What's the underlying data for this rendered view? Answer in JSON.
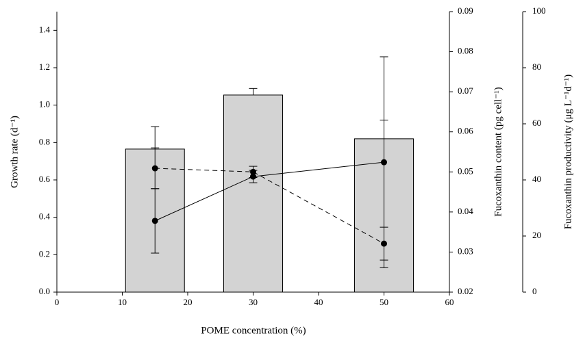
{
  "chart_data": {
    "type": "bar_line",
    "xlabel": "POME concentration (%)",
    "ylabel": "Growth rate (d⁻¹)",
    "y2label": "Fucoxanthin content (pg cell⁻¹)",
    "y3label": "Fucoxanthin productivity (μg L⁻¹d⁻¹)",
    "xlim": [
      0,
      60
    ],
    "xticks": [
      0,
      10,
      20,
      30,
      40,
      50,
      60
    ],
    "ylim": [
      0,
      1.5
    ],
    "yticks": [
      {
        "value": 0,
        "label": "0.0"
      },
      {
        "value": 0.2,
        "label": "0.2"
      },
      {
        "value": 0.4,
        "label": "0.4"
      },
      {
        "value": 0.6,
        "label": "0.6"
      },
      {
        "value": 0.8,
        "label": "0.8"
      },
      {
        "value": 1,
        "label": "1.0"
      },
      {
        "value": 1.2,
        "label": "1.2"
      },
      {
        "value": 1.4,
        "label": "1.4"
      }
    ],
    "y2lim": [
      0.02,
      0.09
    ],
    "y2ticks": [
      0.02,
      0.03,
      0.04,
      0.05,
      0.06,
      0.07,
      0.08,
      0.09
    ],
    "y3lim": [
      0,
      100
    ],
    "y3ticks": [
      0,
      20,
      40,
      60,
      80,
      100
    ],
    "x": [
      15,
      30,
      50
    ],
    "bar_width": 9,
    "series": [
      {
        "kind": "bar",
        "axis": "y",
        "color": "#d3d3d3",
        "values": [
          0.765,
          1.054,
          0.82
        ],
        "errors": [
          0.12,
          0.035,
          0.1
        ]
      },
      {
        "kind": "line",
        "axis": "y2",
        "color": "#000000",
        "dash": true,
        "values": [
          0.0509,
          0.05,
          0.0321
        ],
        "errors": [
          0.0051,
          0.0014,
          0.0041
        ]
      },
      {
        "kind": "line",
        "axis": "y3",
        "color": "#000000",
        "dash": false,
        "values": [
          25.4,
          41.2,
          46.3
        ],
        "errors": [
          11.5,
          2.2,
          37.6
        ]
      }
    ]
  }
}
